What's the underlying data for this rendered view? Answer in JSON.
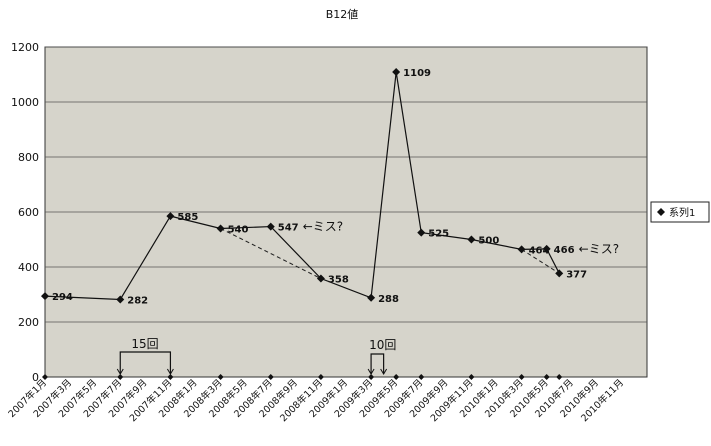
{
  "chart_data": {
    "type": "line",
    "title": "B12値",
    "xlabel": "",
    "ylabel": "",
    "ylim": [
      0,
      1200
    ],
    "yticks": [
      0,
      200,
      400,
      600,
      800,
      1000,
      1200
    ],
    "grid": true,
    "legend_position": "right",
    "x_tick_labels": [
      "2007年1月",
      "2007年3月",
      "2007年5月",
      "2007年7月",
      "2007年9月",
      "2007年11月",
      "2008年1月",
      "2008年3月",
      "2008年5月",
      "2008年7月",
      "2008年9月",
      "2008年11月",
      "2009年1月",
      "2009年3月",
      "2009年5月",
      "2009年7月",
      "2009年9月",
      "2009年11月",
      "2010年1月",
      "2010年3月",
      "2010年5月",
      "2010年7月",
      "2010年9月",
      "2010年11月"
    ],
    "series": [
      {
        "name": "系列1",
        "x": [
          "2007年1月",
          "2007年7月",
          "2007年11月",
          "2008年3月",
          "2008年7月",
          "2008年11月",
          "2009年3月",
          "2009年5月",
          "2009年7月",
          "2009年11月",
          "2010年3月",
          "2010年5月",
          "2010年6月"
        ],
        "x_index": [
          0,
          6,
          10,
          14,
          18,
          22,
          26,
          28,
          30,
          34,
          38,
          40,
          41
        ],
        "values": [
          294,
          282,
          585,
          540,
          547,
          358,
          288,
          1109,
          525,
          500,
          464,
          466,
          377
        ]
      }
    ],
    "annotations": {
      "miss_label": "←ミス?",
      "count_15": "15回",
      "count_10": "10回"
    }
  }
}
